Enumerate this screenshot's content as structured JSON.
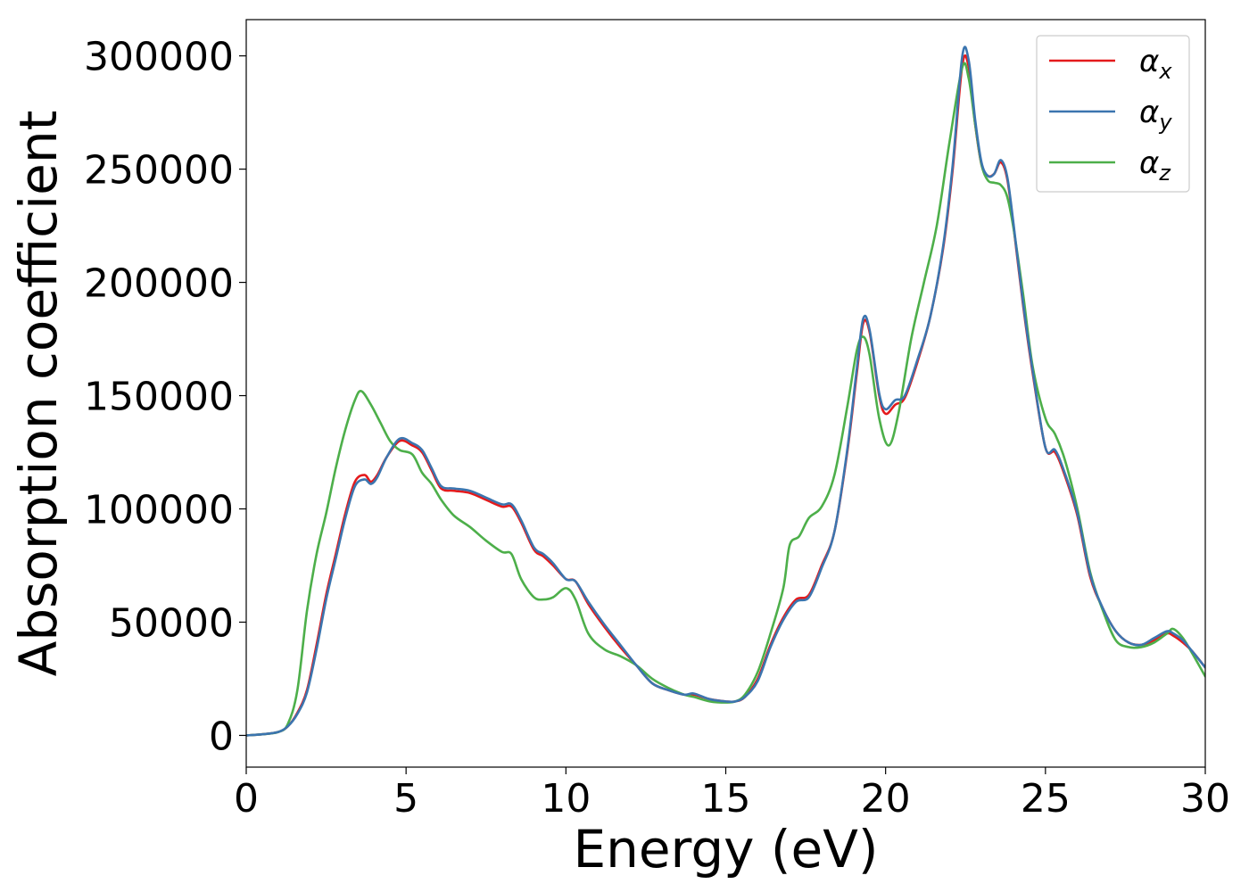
{
  "chart_data": {
    "type": "line",
    "title": "",
    "xlabel": "Energy (eV)",
    "ylabel": "Absorption coefficient",
    "xlim": [
      0,
      30
    ],
    "ylim": [
      -14000,
      316000
    ],
    "xticks": [
      0,
      5,
      10,
      15,
      20,
      25,
      30
    ],
    "yticks": [
      0,
      50000,
      100000,
      150000,
      200000,
      250000,
      300000
    ],
    "grid": false,
    "legend_position": "top-right",
    "series": [
      {
        "name": "α",
        "subscript": "x",
        "color": "#e41a1c",
        "x": [
          0,
          0.5,
          1.0,
          1.3,
          1.6,
          1.9,
          2.2,
          2.5,
          2.8,
          3.1,
          3.4,
          3.7,
          3.9,
          4.1,
          4.4,
          4.8,
          5.2,
          5.5,
          5.8,
          6.1,
          6.5,
          7.0,
          7.5,
          8.0,
          8.3,
          8.6,
          9.0,
          9.3,
          9.6,
          10.0,
          10.3,
          10.7,
          11.2,
          11.7,
          12.2,
          12.7,
          13.2,
          13.7,
          14.0,
          14.5,
          15.0,
          15.3,
          15.6,
          16.0,
          16.4,
          16.8,
          17.2,
          17.6,
          18.0,
          18.4,
          18.8,
          19.1,
          19.3,
          19.5,
          19.8,
          20.0,
          20.3,
          20.6,
          21.0,
          21.4,
          21.8,
          22.1,
          22.4,
          22.6,
          22.8,
          23.0,
          23.2,
          23.4,
          23.6,
          23.8,
          24.0,
          24.3,
          24.6,
          25.0,
          25.3,
          25.6,
          26.0,
          26.4,
          26.8,
          27.2,
          27.6,
          28.0,
          28.4,
          28.8,
          29.0,
          29.3,
          29.6,
          30.0
        ],
        "y": [
          0,
          500,
          1500,
          4000,
          10000,
          20000,
          40000,
          62000,
          80000,
          98000,
          112000,
          115000,
          112000,
          115000,
          123000,
          130000,
          128000,
          125000,
          117000,
          109000,
          108000,
          107000,
          104000,
          101000,
          101000,
          94000,
          82000,
          79000,
          75000,
          69000,
          68000,
          58000,
          48000,
          39000,
          31000,
          23000,
          20000,
          18000,
          18000,
          16000,
          15000,
          15000,
          17000,
          25000,
          40000,
          52000,
          60000,
          62000,
          75000,
          90000,
          125000,
          160000,
          182000,
          178000,
          150000,
          142000,
          146000,
          149000,
          165000,
          185000,
          215000,
          250000,
          296000,
          295000,
          270000,
          252000,
          247000,
          248000,
          253000,
          246000,
          225000,
          190000,
          160000,
          127000,
          125000,
          115000,
          97000,
          70000,
          56000,
          46000,
          41000,
          40000,
          42000,
          45000,
          44000,
          41000,
          37000,
          30000
        ]
      },
      {
        "name": "α",
        "subscript": "y",
        "color": "#3b75af",
        "x": [
          0,
          0.5,
          1.0,
          1.3,
          1.6,
          1.9,
          2.2,
          2.5,
          2.8,
          3.1,
          3.4,
          3.7,
          3.9,
          4.1,
          4.4,
          4.8,
          5.2,
          5.5,
          5.8,
          6.1,
          6.5,
          7.0,
          7.5,
          8.0,
          8.3,
          8.6,
          9.0,
          9.3,
          9.6,
          10.0,
          10.3,
          10.7,
          11.2,
          11.7,
          12.2,
          12.7,
          13.2,
          13.7,
          14.0,
          14.5,
          15.0,
          15.3,
          15.6,
          16.0,
          16.4,
          16.8,
          17.2,
          17.6,
          18.0,
          18.4,
          18.8,
          19.1,
          19.3,
          19.5,
          19.8,
          20.0,
          20.3,
          20.6,
          21.0,
          21.4,
          21.8,
          22.1,
          22.4,
          22.6,
          22.8,
          23.0,
          23.2,
          23.4,
          23.6,
          23.8,
          24.0,
          24.3,
          24.6,
          25.0,
          25.3,
          25.6,
          26.0,
          26.4,
          26.8,
          27.2,
          27.6,
          28.0,
          28.4,
          28.8,
          29.0,
          29.3,
          29.6,
          30.0
        ],
        "y": [
          0,
          500,
          1500,
          4000,
          9500,
          19000,
          38000,
          60000,
          78000,
          96000,
          110000,
          113000,
          111000,
          114000,
          123000,
          131000,
          129000,
          126000,
          118000,
          110000,
          109000,
          108000,
          105000,
          102000,
          102000,
          95000,
          83000,
          80000,
          76000,
          69000,
          68000,
          59000,
          49000,
          40000,
          31000,
          23000,
          20000,
          18000,
          18500,
          16000,
          15000,
          15000,
          17000,
          24000,
          39000,
          51000,
          59000,
          61000,
          74000,
          90000,
          126000,
          162000,
          184000,
          179000,
          151000,
          144000,
          148000,
          150000,
          166000,
          185000,
          216000,
          252000,
          300000,
          298000,
          272000,
          253000,
          247000,
          248000,
          254000,
          247000,
          226000,
          191000,
          161000,
          127000,
          126000,
          116000,
          98000,
          71000,
          56000,
          46000,
          41000,
          40000,
          43000,
          46000,
          45000,
          42000,
          37000,
          30000
        ]
      },
      {
        "name": "α",
        "subscript": "z",
        "color": "#4daf4a",
        "x": [
          0,
          0.5,
          1.0,
          1.3,
          1.6,
          1.9,
          2.2,
          2.5,
          2.8,
          3.1,
          3.4,
          3.6,
          3.9,
          4.2,
          4.5,
          4.8,
          5.2,
          5.5,
          5.8,
          6.1,
          6.5,
          7.0,
          7.5,
          8.0,
          8.3,
          8.6,
          9.0,
          9.3,
          9.6,
          10.0,
          10.3,
          10.7,
          11.2,
          11.7,
          12.2,
          12.7,
          13.2,
          13.7,
          14.0,
          14.5,
          15.0,
          15.3,
          15.6,
          16.0,
          16.4,
          16.8,
          17.0,
          17.3,
          17.6,
          18.0,
          18.4,
          18.8,
          19.1,
          19.3,
          19.5,
          19.8,
          20.1,
          20.4,
          20.8,
          21.2,
          21.6,
          22.0,
          22.4,
          22.6,
          22.8,
          23.0,
          23.2,
          23.4,
          23.6,
          23.8,
          24.0,
          24.3,
          24.6,
          25.0,
          25.3,
          25.6,
          26.0,
          26.4,
          26.8,
          27.2,
          27.6,
          28.0,
          28.4,
          28.8,
          29.0,
          29.3,
          29.6,
          30.0
        ],
        "y": [
          0,
          500,
          1500,
          5000,
          20000,
          55000,
          80000,
          98000,
          118000,
          135000,
          148000,
          152000,
          146000,
          138000,
          130000,
          126000,
          124000,
          116000,
          111000,
          104000,
          97000,
          92000,
          86000,
          81000,
          80000,
          69000,
          61000,
          60000,
          61000,
          65000,
          60000,
          45000,
          38000,
          35000,
          31000,
          25000,
          21000,
          18000,
          17000,
          15000,
          14500,
          15000,
          18000,
          28000,
          45000,
          65000,
          84000,
          88000,
          96000,
          101000,
          115000,
          145000,
          170000,
          176000,
          168000,
          140000,
          128000,
          142000,
          175000,
          200000,
          225000,
          262000,
          295000,
          290000,
          270000,
          252000,
          245000,
          244000,
          243000,
          238000,
          224000,
          195000,
          163000,
          140000,
          133000,
          122000,
          100000,
          72000,
          55000,
          42000,
          39000,
          39000,
          41000,
          45000,
          47000,
          43000,
          36000,
          26000
        ]
      }
    ]
  }
}
